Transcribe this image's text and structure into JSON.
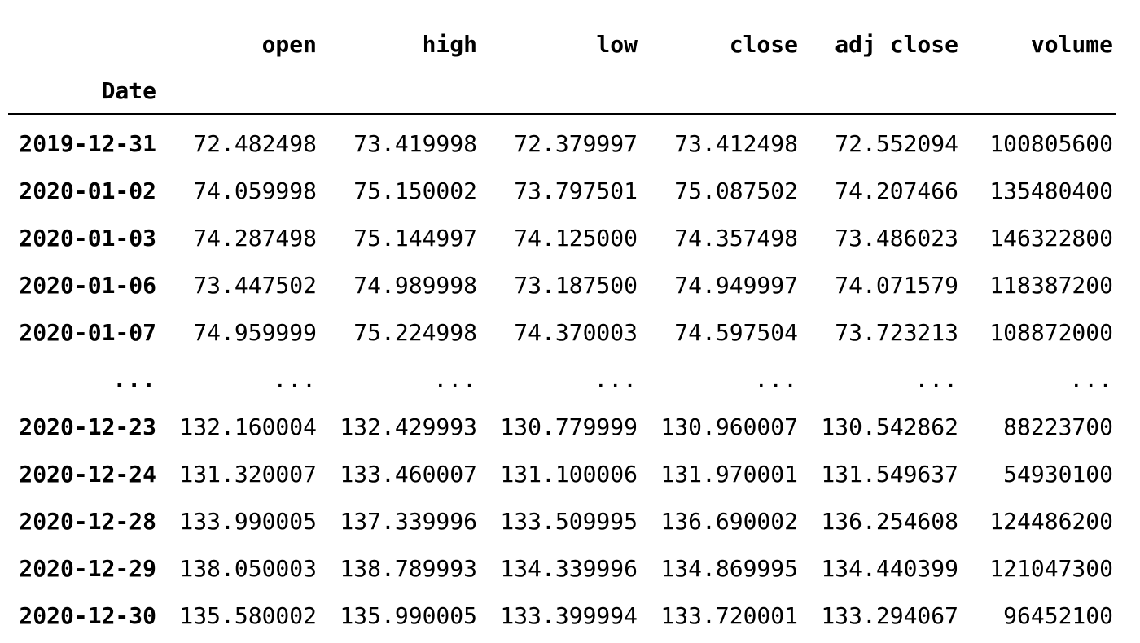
{
  "dataframe": {
    "index_name": "Date",
    "columns": [
      "open",
      "high",
      "low",
      "close",
      "adj close",
      "volume"
    ],
    "rows": [
      {
        "date": "2019-12-31",
        "values": [
          "72.482498",
          "73.419998",
          "72.379997",
          "73.412498",
          "72.552094",
          "100805600"
        ]
      },
      {
        "date": "2020-01-02",
        "values": [
          "74.059998",
          "75.150002",
          "73.797501",
          "75.087502",
          "74.207466",
          "135480400"
        ]
      },
      {
        "date": "2020-01-03",
        "values": [
          "74.287498",
          "75.144997",
          "74.125000",
          "74.357498",
          "73.486023",
          "146322800"
        ]
      },
      {
        "date": "2020-01-06",
        "values": [
          "73.447502",
          "74.989998",
          "73.187500",
          "74.949997",
          "74.071579",
          "118387200"
        ]
      },
      {
        "date": "2020-01-07",
        "values": [
          "74.959999",
          "75.224998",
          "74.370003",
          "74.597504",
          "73.723213",
          "108872000"
        ]
      },
      {
        "date": "...",
        "values": [
          "...",
          "...",
          "...",
          "...",
          "...",
          "..."
        ]
      },
      {
        "date": "2020-12-23",
        "values": [
          "132.160004",
          "132.429993",
          "130.779999",
          "130.960007",
          "130.542862",
          "88223700"
        ]
      },
      {
        "date": "2020-12-24",
        "values": [
          "131.320007",
          "133.460007",
          "131.100006",
          "131.970001",
          "131.549637",
          "54930100"
        ]
      },
      {
        "date": "2020-12-28",
        "values": [
          "133.990005",
          "137.339996",
          "133.509995",
          "136.690002",
          "136.254608",
          "124486200"
        ]
      },
      {
        "date": "2020-12-29",
        "values": [
          "138.050003",
          "138.789993",
          "134.339996",
          "134.869995",
          "134.440399",
          "121047300"
        ]
      },
      {
        "date": "2020-12-30",
        "values": [
          "135.580002",
          "135.990005",
          "133.399994",
          "133.720001",
          "133.294067",
          "96452100"
        ]
      }
    ]
  }
}
